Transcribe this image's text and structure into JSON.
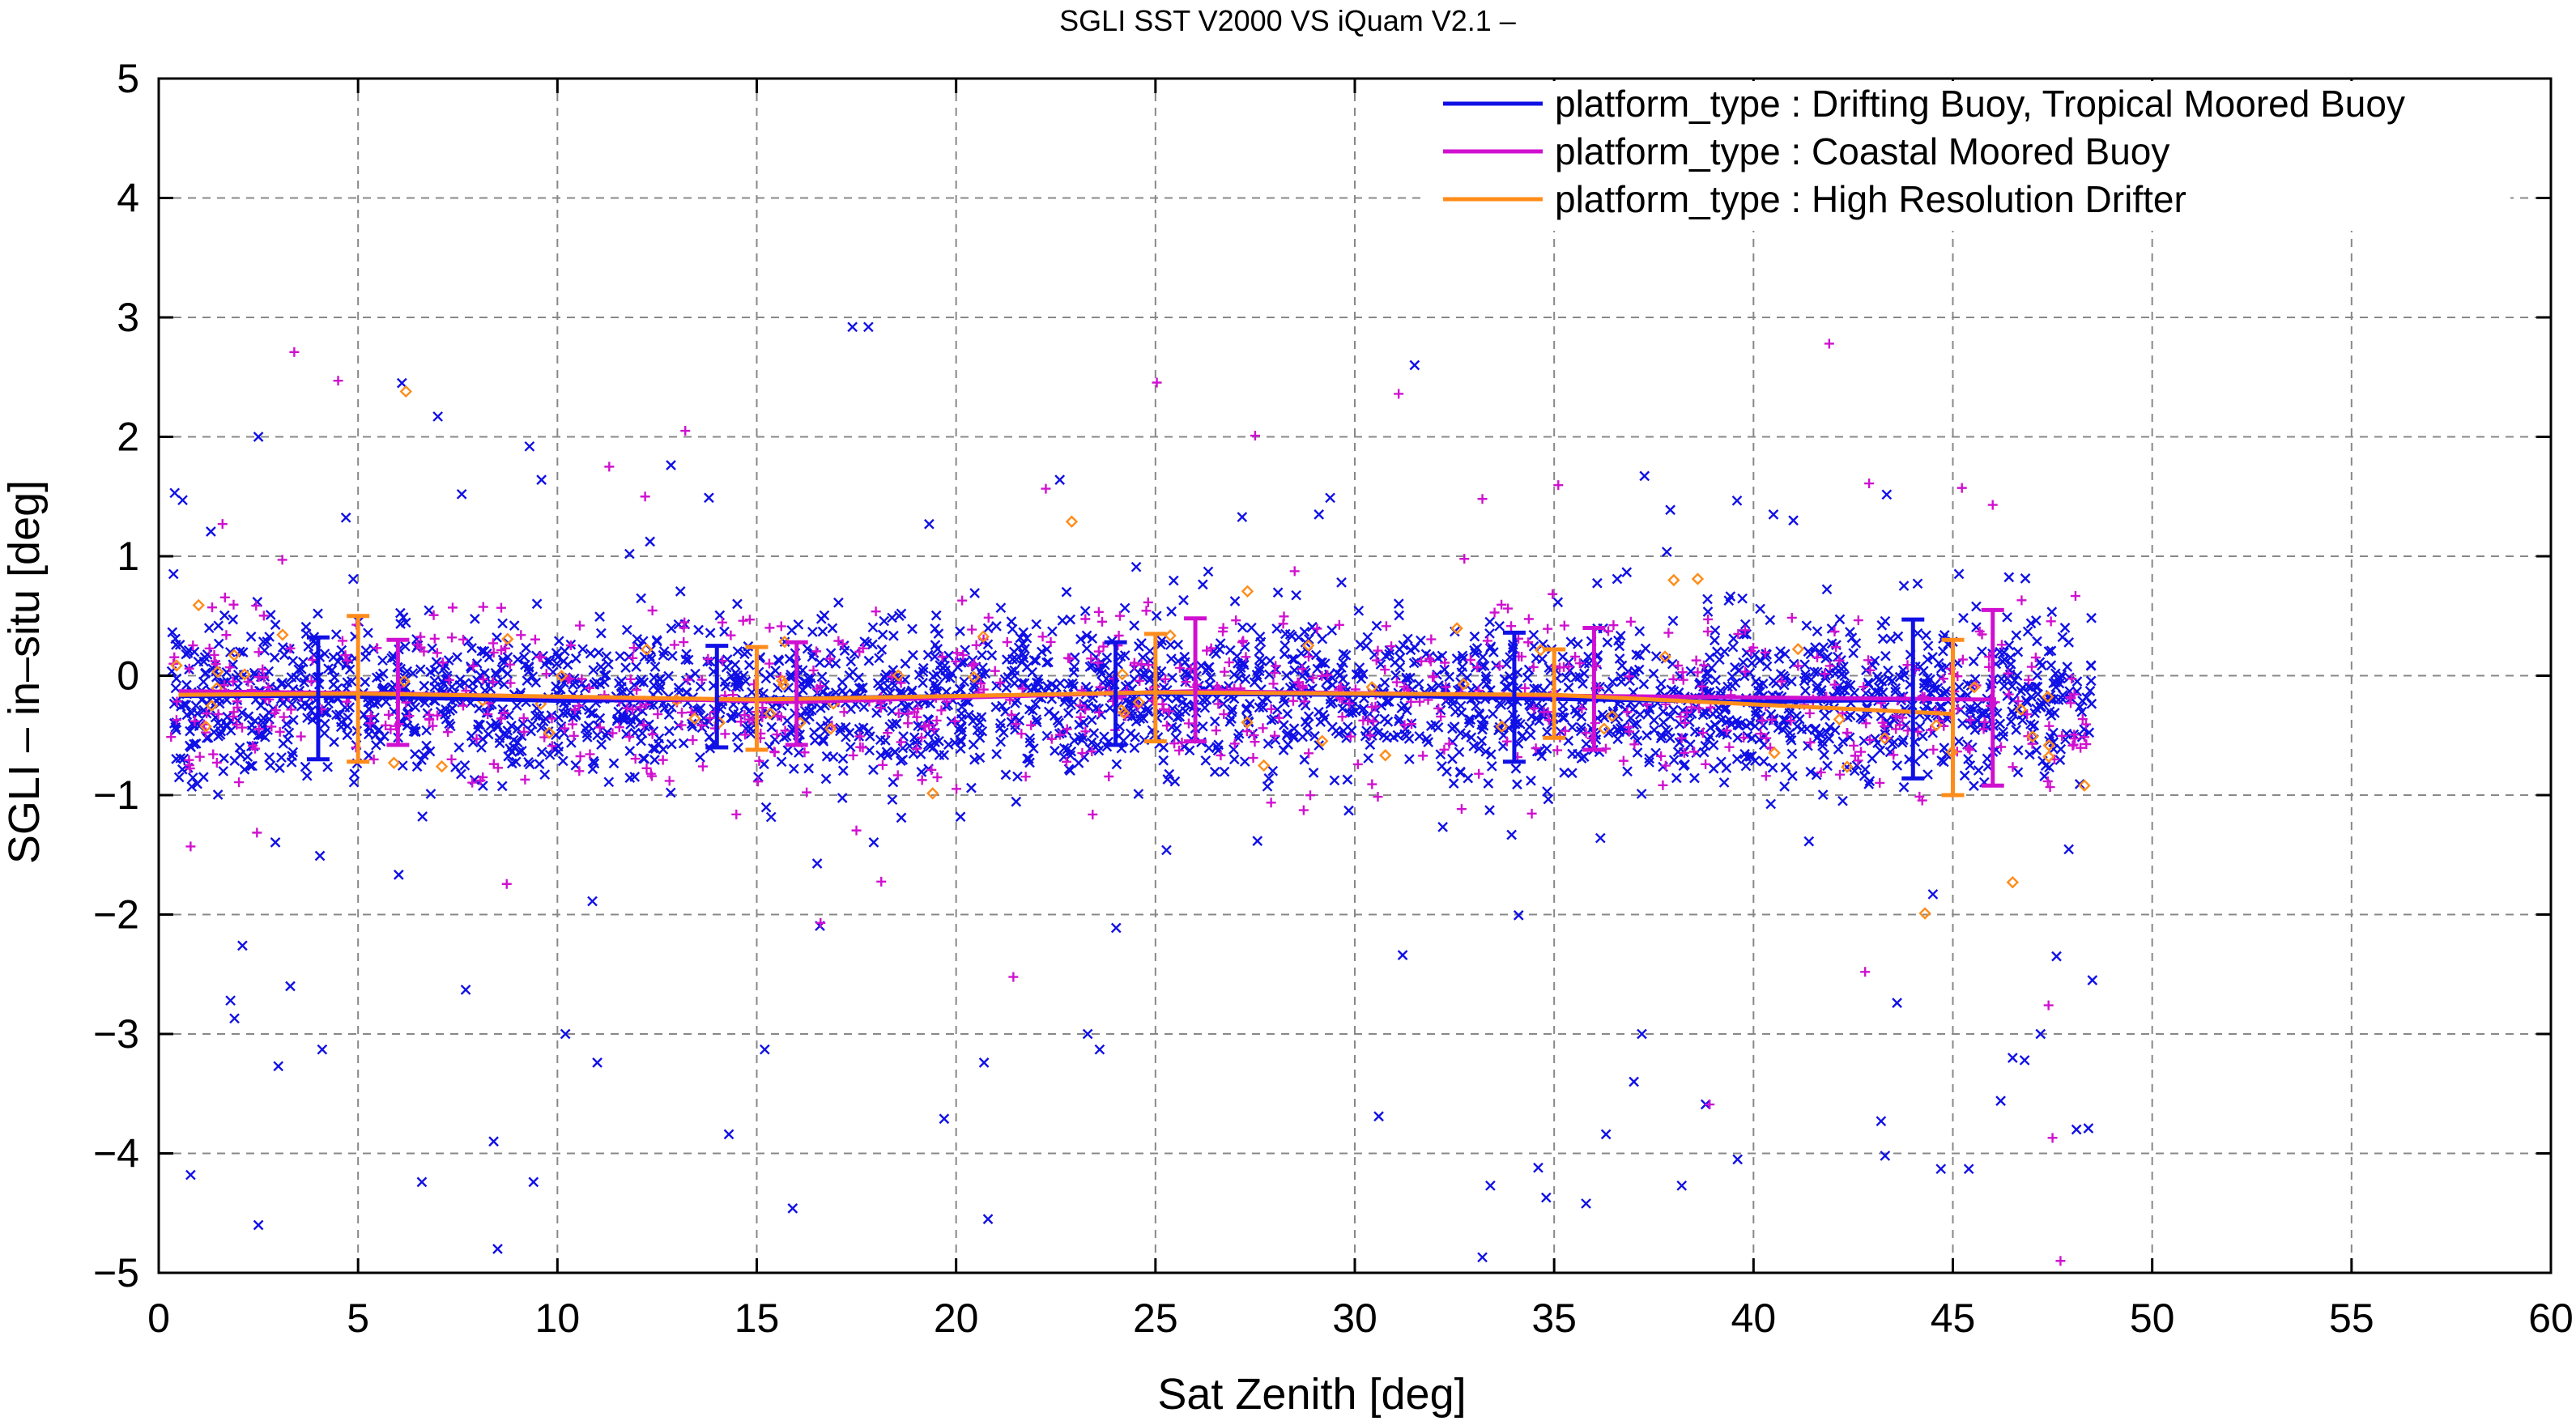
{
  "chart_data": {
    "type": "scatter",
    "title": "SGLI SST V2000 VS iQuam V2.1  –",
    "xlabel": "Sat Zenith [deg]",
    "ylabel": "SGLI – in–situ [deg]",
    "xlim": [
      0,
      60
    ],
    "ylim": [
      -5,
      5
    ],
    "x_ticks": [
      0,
      5,
      10,
      15,
      20,
      25,
      30,
      35,
      40,
      45,
      50,
      55,
      60
    ],
    "y_ticks": [
      -5,
      -4,
      -3,
      -2,
      -1,
      0,
      1,
      2,
      3,
      4,
      5
    ],
    "x_tick_labels": [
      "0",
      "5",
      "10",
      "15",
      "20",
      "25",
      "30",
      "35",
      "40",
      "45",
      "50",
      "55",
      "60"
    ],
    "y_tick_labels": [
      "−5",
      "−4",
      "−3",
      "−2",
      "−1",
      "0",
      "1",
      "2",
      "3",
      "4",
      "5"
    ],
    "grid": true,
    "legend_position": "top-right",
    "series": [
      {
        "name": "platform_type : Drifting Buoy, Tropical Moored Buoy",
        "color": "#1010e6",
        "marker": "x",
        "mean_line": {
          "x": [
            0.5,
            4,
            10,
            14,
            20,
            24,
            30,
            34,
            40,
            44
          ],
          "y": [
            -0.17,
            -0.17,
            -0.21,
            -0.2,
            -0.17,
            -0.15,
            -0.16,
            -0.19,
            -0.22,
            -0.2
          ]
        },
        "error_bars": [
          {
            "x": 4,
            "y": -0.17,
            "low": -0.7,
            "high": 0.32
          },
          {
            "x": 14,
            "y": -0.2,
            "low": -0.6,
            "high": 0.25
          },
          {
            "x": 24,
            "y": -0.15,
            "low": -0.58,
            "high": 0.28
          },
          {
            "x": 34,
            "y": -0.19,
            "low": -0.72,
            "high": 0.36
          },
          {
            "x": 44,
            "y": -0.2,
            "low": -0.86,
            "high": 0.47
          }
        ],
        "outliers": [
          [
            0.4,
            1.53
          ],
          [
            0.6,
            1.47
          ],
          [
            0.8,
            -4.18
          ],
          [
            2.5,
            2.0
          ],
          [
            2.5,
            -4.6
          ],
          [
            1.8,
            -2.72
          ],
          [
            2.1,
            -2.26
          ],
          [
            1.9,
            -2.87
          ],
          [
            3.0,
            -3.27
          ],
          [
            3.3,
            -2.6
          ],
          [
            4.1,
            -3.13
          ],
          [
            6.1,
            2.45
          ],
          [
            7.0,
            2.17
          ],
          [
            7.6,
            1.52
          ],
          [
            6.6,
            -4.24
          ],
          [
            7.7,
            -2.63
          ],
          [
            8.4,
            -3.9
          ],
          [
            8.5,
            -4.8
          ],
          [
            9.3,
            1.92
          ],
          [
            9.6,
            1.64
          ],
          [
            9.4,
            -4.24
          ],
          [
            10.2,
            -3.0
          ],
          [
            11.0,
            -3.24
          ],
          [
            13.8,
            1.49
          ],
          [
            14.3,
            -3.84
          ],
          [
            15.2,
            -3.13
          ],
          [
            15.9,
            -4.46
          ],
          [
            17.4,
            2.92
          ],
          [
            17.8,
            2.92
          ],
          [
            19.7,
            -3.71
          ],
          [
            20.7,
            -3.24
          ],
          [
            20.8,
            -4.55
          ],
          [
            22.6,
            1.64
          ],
          [
            23.3,
            -3.0
          ],
          [
            23.6,
            -3.13
          ],
          [
            29.1,
            1.35
          ],
          [
            30.6,
            -3.69
          ],
          [
            31.5,
            2.6
          ],
          [
            31.2,
            -2.34
          ],
          [
            33.2,
            -4.87
          ],
          [
            33.4,
            -4.27
          ],
          [
            34.6,
            -4.12
          ],
          [
            34.8,
            -4.37
          ],
          [
            35.8,
            -4.42
          ],
          [
            36.3,
            -3.84
          ],
          [
            37.2,
            -3.0
          ],
          [
            37.0,
            -3.4
          ],
          [
            38.2,
            -4.27
          ],
          [
            38.8,
            -3.59
          ],
          [
            39.6,
            -4.05
          ],
          [
            40.5,
            1.35
          ],
          [
            41.0,
            1.3
          ],
          [
            43.2,
            -3.73
          ],
          [
            43.3,
            -4.02
          ],
          [
            43.6,
            -2.74
          ],
          [
            44.5,
            -1.83
          ],
          [
            44.7,
            -4.13
          ],
          [
            45.4,
            -4.13
          ],
          [
            46.2,
            -3.56
          ],
          [
            46.5,
            -3.2
          ],
          [
            46.8,
            -3.22
          ],
          [
            47.2,
            -3.0
          ],
          [
            47.6,
            -2.35
          ],
          [
            48.1,
            -3.8
          ],
          [
            48.5,
            -2.55
          ],
          [
            48.4,
            -3.79
          ]
        ]
      },
      {
        "name": "platform_type : Coastal Moored Buoy",
        "color": "#d010d0",
        "marker": "+",
        "mean_line": {
          "x": [
            0.5,
            6,
            16,
            26,
            36,
            46
          ],
          "y": [
            -0.13,
            -0.15,
            -0.22,
            -0.13,
            -0.17,
            -0.2
          ]
        },
        "error_bars": [
          {
            "x": 6,
            "y": -0.15,
            "low": -0.58,
            "high": 0.3
          },
          {
            "x": 16,
            "y": -0.22,
            "low": -0.58,
            "high": 0.28
          },
          {
            "x": 26,
            "y": -0.13,
            "low": -0.55,
            "high": 0.48
          },
          {
            "x": 36,
            "y": -0.17,
            "low": -0.62,
            "high": 0.4
          },
          {
            "x": 46,
            "y": -0.2,
            "low": -0.92,
            "high": 0.55
          }
        ],
        "outliers": [
          [
            3.4,
            2.71
          ],
          [
            4.5,
            2.47
          ],
          [
            11.3,
            1.75
          ],
          [
            12.2,
            1.5
          ],
          [
            27.5,
            2.01
          ],
          [
            31.1,
            2.36
          ],
          [
            33.2,
            1.48
          ],
          [
            41.9,
            2.78
          ],
          [
            42.9,
            1.61
          ],
          [
            46.0,
            1.43
          ],
          [
            47.4,
            -2.76
          ],
          [
            47.5,
            -3.87
          ],
          [
            47.7,
            -4.9
          ],
          [
            38.9,
            -3.59
          ],
          [
            42.8,
            -2.48
          ],
          [
            0.8,
            -1.43
          ],
          [
            1.6,
            1.27
          ],
          [
            16.6,
            -2.07
          ]
        ]
      },
      {
        "name": "platform_type : High Resolution Drifter",
        "color": "#ff8c1a",
        "marker": "diamond",
        "mean_line": {
          "x": [
            0.5,
            5,
            15,
            25,
            35,
            45
          ],
          "y": [
            -0.16,
            -0.15,
            -0.2,
            -0.14,
            -0.16,
            -0.32
          ]
        },
        "error_bars": [
          {
            "x": 5,
            "y": -0.15,
            "low": -0.72,
            "high": 0.5
          },
          {
            "x": 15,
            "y": -0.2,
            "low": -0.62,
            "high": 0.24
          },
          {
            "x": 25,
            "y": -0.14,
            "low": -0.55,
            "high": 0.35
          },
          {
            "x": 35,
            "y": -0.16,
            "low": -0.52,
            "high": 0.22
          },
          {
            "x": 45,
            "y": -0.32,
            "low": -1.0,
            "high": 0.3
          }
        ],
        "outliers": [
          [
            1.0,
            0.59
          ],
          [
            6.2,
            2.38
          ],
          [
            7.1,
            -0.76
          ],
          [
            22.9,
            1.29
          ],
          [
            38.6,
            0.81
          ],
          [
            38.0,
            0.8
          ],
          [
            44.3,
            -1.99
          ],
          [
            46.5,
            -1.73
          ],
          [
            47.0,
            -0.51
          ],
          [
            48.3,
            -0.92
          ],
          [
            5.9,
            -0.73
          ]
        ]
      }
    ]
  }
}
